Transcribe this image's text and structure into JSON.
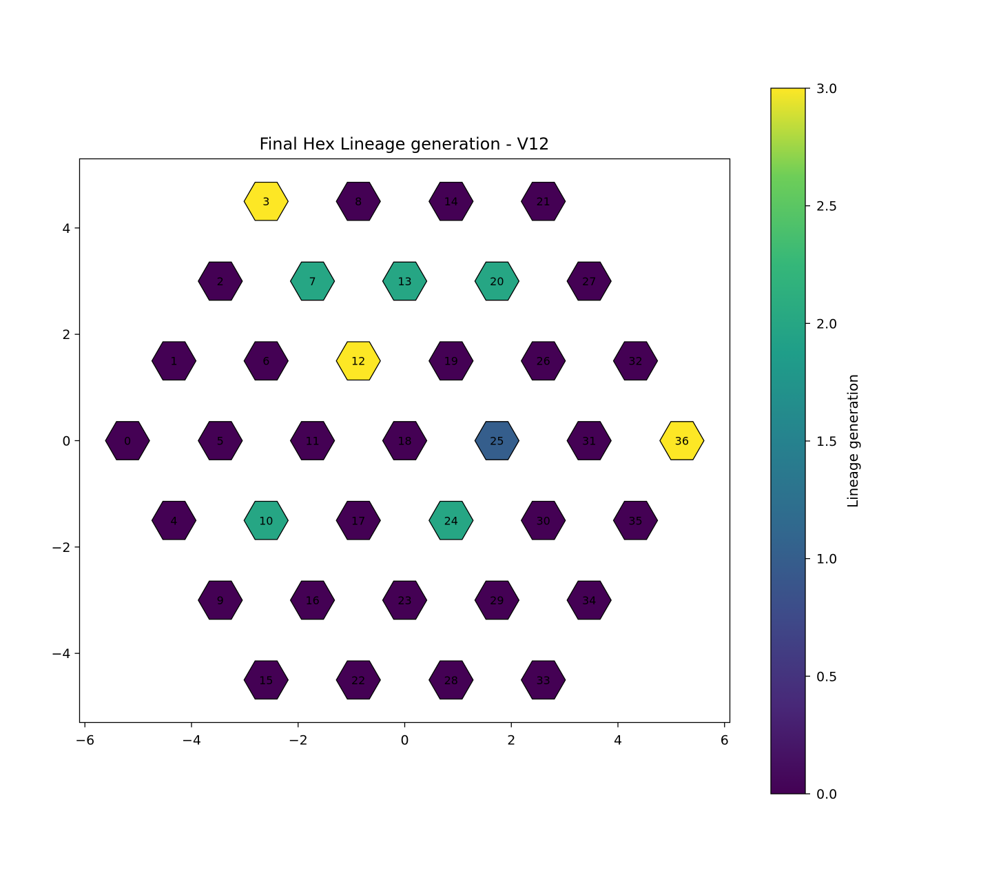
{
  "chart_data": {
    "type": "heatmap",
    "title": "Final Hex Lineage generation - V12",
    "xlabel": "",
    "ylabel": "",
    "xlim": [
      -6.1,
      6.1
    ],
    "ylim": [
      -5.3,
      5.3
    ],
    "x_ticks": [
      -6,
      -4,
      -2,
      0,
      2,
      4,
      6
    ],
    "y_ticks": [
      -4,
      -2,
      0,
      2,
      4
    ],
    "colorbar": {
      "label": "Lineage generation",
      "range": [
        0,
        3
      ],
      "ticks": [
        "0.0",
        "0.5",
        "1.0",
        "1.5",
        "2.0",
        "2.5",
        "3.0"
      ],
      "colormap": "viridis"
    },
    "cells": [
      {
        "id": "0",
        "x": -5.2,
        "y": 0.0,
        "value": 0
      },
      {
        "id": "1",
        "x": -4.33,
        "y": 1.5,
        "value": 0
      },
      {
        "id": "2",
        "x": -3.46,
        "y": 3.0,
        "value": 0
      },
      {
        "id": "3",
        "x": -2.6,
        "y": 4.5,
        "value": 3
      },
      {
        "id": "4",
        "x": -4.33,
        "y": -1.5,
        "value": 0
      },
      {
        "id": "5",
        "x": -3.46,
        "y": 0.0,
        "value": 0
      },
      {
        "id": "6",
        "x": -2.6,
        "y": 1.5,
        "value": 0
      },
      {
        "id": "7",
        "x": -1.73,
        "y": 3.0,
        "value": 2
      },
      {
        "id": "8",
        "x": -0.87,
        "y": 4.5,
        "value": 0
      },
      {
        "id": "9",
        "x": -3.46,
        "y": -3.0,
        "value": 0
      },
      {
        "id": "10",
        "x": -2.6,
        "y": -1.5,
        "value": 2
      },
      {
        "id": "11",
        "x": -1.73,
        "y": 0.0,
        "value": 0
      },
      {
        "id": "12",
        "x": -0.87,
        "y": 1.5,
        "value": 3
      },
      {
        "id": "13",
        "x": 0.0,
        "y": 3.0,
        "value": 2
      },
      {
        "id": "14",
        "x": 0.87,
        "y": 4.5,
        "value": 0
      },
      {
        "id": "15",
        "x": -2.6,
        "y": -4.5,
        "value": 0
      },
      {
        "id": "16",
        "x": -1.73,
        "y": -3.0,
        "value": 0
      },
      {
        "id": "17",
        "x": -0.87,
        "y": -1.5,
        "value": 0
      },
      {
        "id": "18",
        "x": 0.0,
        "y": 0.0,
        "value": 0
      },
      {
        "id": "19",
        "x": 0.87,
        "y": 1.5,
        "value": 0
      },
      {
        "id": "20",
        "x": 1.73,
        "y": 3.0,
        "value": 2
      },
      {
        "id": "21",
        "x": 2.6,
        "y": 4.5,
        "value": 0
      },
      {
        "id": "22",
        "x": -0.87,
        "y": -4.5,
        "value": 0
      },
      {
        "id": "23",
        "x": 0.0,
        "y": -3.0,
        "value": 0
      },
      {
        "id": "24",
        "x": 0.87,
        "y": -1.5,
        "value": 2
      },
      {
        "id": "25",
        "x": 1.73,
        "y": 0.0,
        "value": 1
      },
      {
        "id": "26",
        "x": 2.6,
        "y": 1.5,
        "value": 0
      },
      {
        "id": "27",
        "x": 3.46,
        "y": 3.0,
        "value": 0
      },
      {
        "id": "28",
        "x": 0.87,
        "y": -4.5,
        "value": 0
      },
      {
        "id": "29",
        "x": 1.73,
        "y": -3.0,
        "value": 0
      },
      {
        "id": "30",
        "x": 2.6,
        "y": -1.5,
        "value": 0
      },
      {
        "id": "31",
        "x": 3.46,
        "y": 0.0,
        "value": 0
      },
      {
        "id": "32",
        "x": 4.33,
        "y": 1.5,
        "value": 0
      },
      {
        "id": "33",
        "x": 2.6,
        "y": -4.5,
        "value": 0
      },
      {
        "id": "34",
        "x": 3.46,
        "y": -3.0,
        "value": 0
      },
      {
        "id": "35",
        "x": 4.33,
        "y": -1.5,
        "value": 0
      },
      {
        "id": "36",
        "x": 5.2,
        "y": 0.0,
        "value": 3
      }
    ]
  }
}
